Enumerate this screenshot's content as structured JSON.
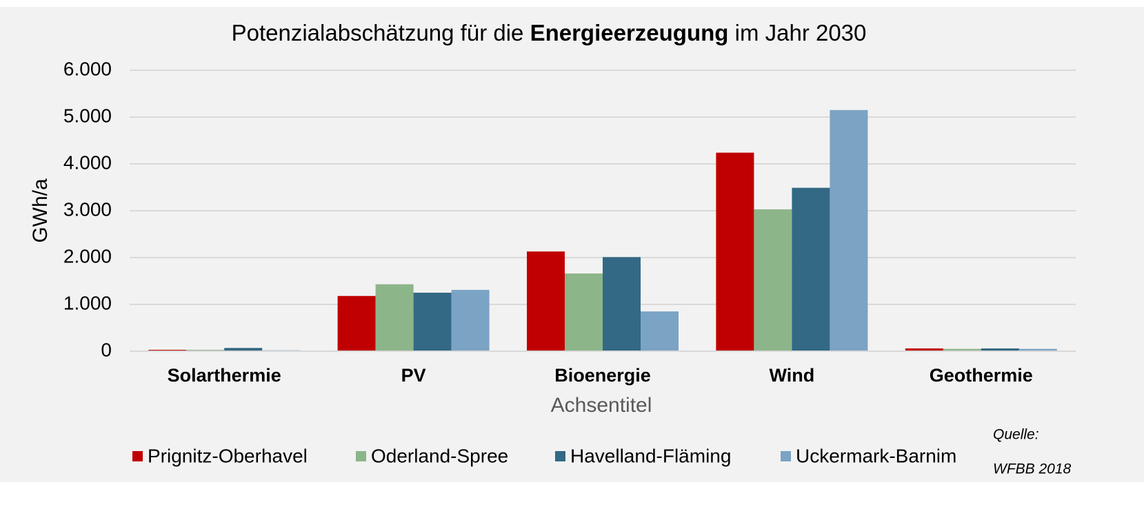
{
  "chart_data": {
    "type": "bar",
    "title_parts": [
      "Potenzialabschätzung für die ",
      "Energieerzeugung",
      " im Jahr 2030"
    ],
    "y_label": "GWh/a",
    "x_label": "Achsentitel",
    "annotations": [
      "Quelle:",
      "WFBB 2018"
    ],
    "categories": [
      "Solarthermie",
      "PV",
      "Bioenergie",
      "Wind",
      "Geothermie"
    ],
    "series": [
      {
        "name": "Prignitz-Oberhavel",
        "color": "#c00000",
        "values": [
          30,
          1180,
          2130,
          4240,
          60
        ]
      },
      {
        "name": "Oderland-Spree",
        "color": "#8db58a",
        "values": [
          30,
          1430,
          1660,
          3030,
          50
        ]
      },
      {
        "name": "Havelland-Fläming",
        "color": "#336985",
        "values": [
          70,
          1250,
          2010,
          3490,
          60
        ]
      },
      {
        "name": "Uckermark-Barnim",
        "color": "#7ba3c4",
        "values": [
          20,
          1310,
          850,
          5150,
          50
        ]
      }
    ],
    "ylim": [
      0,
      6000
    ],
    "yticks": [
      0,
      {
        "value": 1000,
        "label": "1.000"
      },
      {
        "value": 2000,
        "label": "2.000"
      },
      {
        "value": 3000,
        "label": "3.000"
      },
      {
        "value": 4000,
        "label": "4.000"
      },
      {
        "value": 5000,
        "label": "5.000"
      },
      {
        "value": 6000,
        "label": "6.000"
      }
    ],
    "grid": true,
    "legend": "bottom"
  }
}
